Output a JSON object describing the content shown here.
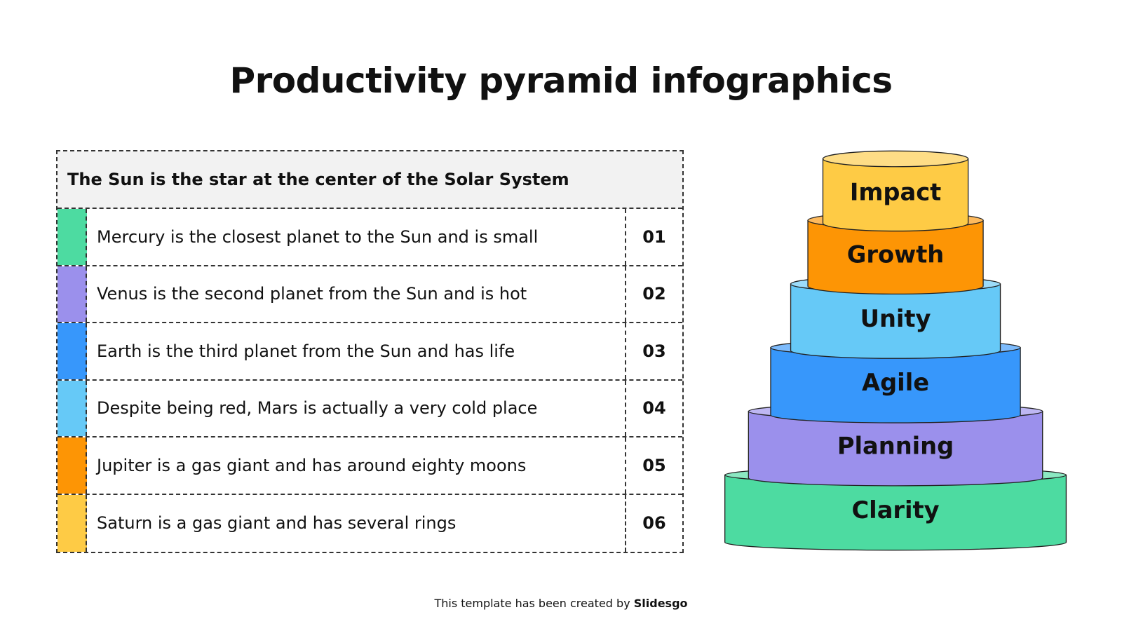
{
  "title": "Productivity pyramid infographics",
  "table": {
    "header": "The Sun is the star at the center of the Solar System",
    "rows": [
      {
        "text": "Mercury is the closest planet to the Sun and is small",
        "number": "01",
        "color": "#4ddba1"
      },
      {
        "text": "Venus is the second planet from the Sun and is hot",
        "number": "02",
        "color": "#9b90ec"
      },
      {
        "text": "Earth is the third planet from the Sun and has life",
        "number": "03",
        "color": "#3797fb"
      },
      {
        "text": "Despite being red, Mars is actually a very cold place",
        "number": "04",
        "color": "#66c9f7"
      },
      {
        "text": "Jupiter is a gas giant and has around eighty moons",
        "number": "05",
        "color": "#fd9505"
      },
      {
        "text": "Saturn is a gas giant and has several rings",
        "number": "06",
        "color": "#fecb45"
      }
    ]
  },
  "pyramid": {
    "levels": [
      {
        "label": "Impact",
        "color": "#fecb45"
      },
      {
        "label": "Growth",
        "color": "#fd9505"
      },
      {
        "label": "Unity",
        "color": "#66c9f7"
      },
      {
        "label": "Agile",
        "color": "#3797fb"
      },
      {
        "label": "Planning",
        "color": "#9b90ec"
      },
      {
        "label": "Clarity",
        "color": "#4ddba1"
      }
    ]
  },
  "footer": {
    "prefix": "This template has been created by ",
    "brand": "Slidesgo"
  }
}
